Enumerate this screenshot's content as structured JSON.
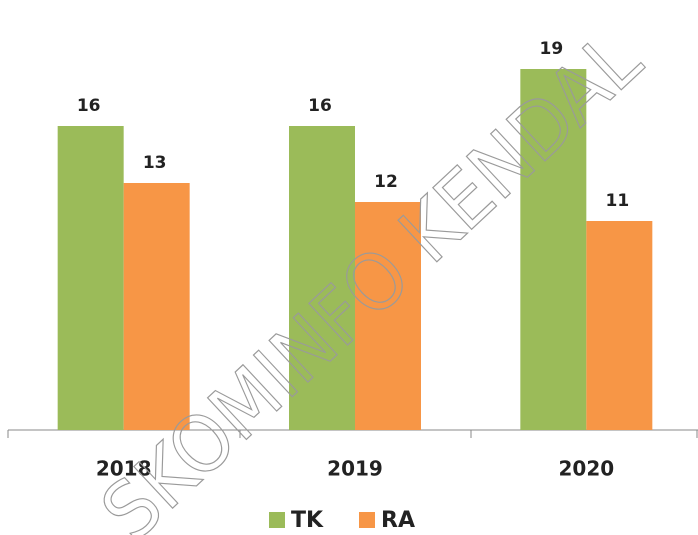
{
  "chart_data": {
    "type": "bar",
    "categories": [
      "2018",
      "2019",
      "2020"
    ],
    "series": [
      {
        "name": "TK",
        "color": "#9bbb59",
        "values": [
          16,
          16,
          19
        ]
      },
      {
        "name": "RA",
        "color": "#f79646",
        "values": [
          13,
          12,
          11
        ]
      }
    ],
    "ylim": [
      0,
      20
    ],
    "watermark": "SKOMINFO KENDAL"
  }
}
